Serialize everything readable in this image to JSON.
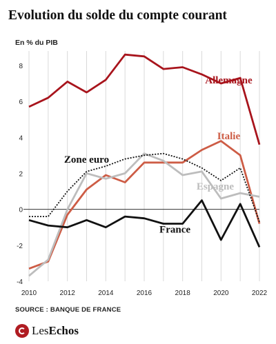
{
  "title": "Evolution du solde du compte courant",
  "unit": "En % du PIB",
  "source": "SOURCE : BANQUE DE FRANCE",
  "logo": {
    "text": "LesEchos",
    "color": "#b01c22"
  },
  "chart_data": {
    "type": "line",
    "title": "Evolution du solde du compte courant",
    "ylabel": "En % du PIB",
    "xlabel": "",
    "x": [
      2010,
      2011,
      2012,
      2013,
      2014,
      2015,
      2016,
      2017,
      2018,
      2019,
      2020,
      2021,
      2022
    ],
    "xticks": [
      2010,
      2012,
      2014,
      2016,
      2018,
      2020,
      2022
    ],
    "yticks": [
      -4,
      -2,
      0,
      2,
      4,
      6,
      8
    ],
    "ylim": [
      -4,
      8.8
    ],
    "xlim": [
      2010,
      2022
    ],
    "grid": "vertical",
    "series": [
      {
        "name": "Allemagne",
        "color": "#a8141c",
        "dash": "",
        "width": 2.8,
        "values": [
          5.7,
          6.2,
          7.1,
          6.5,
          7.2,
          8.6,
          8.5,
          7.8,
          7.9,
          7.5,
          7.0,
          7.3,
          3.6
        ]
      },
      {
        "name": "Italie",
        "color": "#cd5c45",
        "dash": "",
        "width": 2.8,
        "values": [
          -3.3,
          -2.9,
          -0.3,
          1.1,
          1.9,
          1.5,
          2.6,
          2.6,
          2.6,
          3.3,
          3.8,
          3.0,
          -0.8
        ]
      },
      {
        "name": "Espagne",
        "color": "#bdbdbd",
        "dash": "",
        "width": 2.8,
        "values": [
          -3.7,
          -2.8,
          0.0,
          2.0,
          1.7,
          2.0,
          3.1,
          2.7,
          1.9,
          2.1,
          0.6,
          0.9,
          0.7
        ]
      },
      {
        "name": "Zone euro",
        "color": "#111111",
        "dash": "2,2",
        "width": 1.8,
        "values": [
          -0.4,
          -0.4,
          1.0,
          2.1,
          2.4,
          2.8,
          3.0,
          3.1,
          2.8,
          2.3,
          1.6,
          2.3,
          -0.7
        ]
      },
      {
        "name": "France",
        "color": "#111111",
        "dash": "",
        "width": 2.8,
        "values": [
          -0.6,
          -0.9,
          -1.0,
          -0.6,
          -1.0,
          -0.4,
          -0.5,
          -0.8,
          -0.8,
          0.5,
          -1.7,
          0.3,
          -2.1
        ]
      }
    ],
    "labels": [
      {
        "series": "Allemagne",
        "text": "Allemagne",
        "color": "#a8141c",
        "at_x": 2020.4,
        "at_y": 7.0
      },
      {
        "series": "Italie",
        "text": "Italie",
        "color": "#cd5c45",
        "at_x": 2020.4,
        "at_y": 3.9
      },
      {
        "series": "Espagne",
        "text": "Espagne",
        "color": "#bdbdbd",
        "at_x": 2019.7,
        "at_y": 1.1
      },
      {
        "series": "Zone euro",
        "text": "Zone euro",
        "color": "#111111",
        "at_x": 2013.0,
        "at_y": 2.6
      },
      {
        "series": "France",
        "text": "France",
        "color": "#111111",
        "at_x": 2017.6,
        "at_y": -1.3
      }
    ]
  }
}
